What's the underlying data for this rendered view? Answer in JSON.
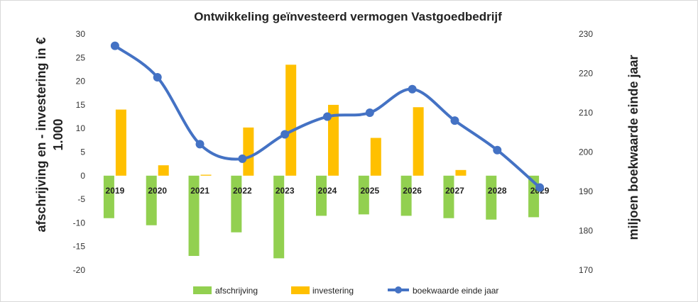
{
  "chart_data": {
    "type": "bar",
    "title": "Ontwikkeling  geïnvesteerd vermogen Vastgoedbedrijf",
    "ylabel_left_line1": "afschrijving en - investering in €",
    "ylabel_left_line2": "1.000",
    "ylabel_right": "miljoen boekwaarde einde jaar",
    "categories": [
      "2019",
      "2020",
      "2021",
      "2022",
      "2023",
      "2024",
      "2025",
      "2026",
      "2027",
      "2028",
      "2029"
    ],
    "ylim_left": [
      -20,
      30
    ],
    "yticks_left": [
      -20,
      -15,
      -10,
      -5,
      0,
      5,
      10,
      15,
      20,
      25,
      30
    ],
    "ylim_right": [
      170,
      230
    ],
    "yticks_right": [
      170,
      180,
      190,
      200,
      210,
      220,
      230
    ],
    "series": [
      {
        "name": "afschrijving",
        "kind": "bar",
        "axis": "left",
        "color": "#92D050",
        "values": [
          -9.0,
          -10.5,
          -17.0,
          -12.0,
          -17.5,
          -8.5,
          -8.2,
          -8.5,
          -9.0,
          -9.3,
          -8.8
        ]
      },
      {
        "name": "investering",
        "kind": "bar",
        "axis": "left",
        "color": "#FFC000",
        "values": [
          14.0,
          2.2,
          0.2,
          10.2,
          23.5,
          15.0,
          8.0,
          14.5,
          1.2,
          0.0,
          0.0
        ]
      },
      {
        "name": "boekwaarde einde jaar",
        "kind": "line",
        "axis": "right",
        "color": "#4472C4",
        "values": [
          227,
          219,
          202,
          198.3,
          204.5,
          209,
          210,
          216,
          208,
          200.5,
          191
        ]
      }
    ],
    "legend_position": "bottom",
    "grid": false
  }
}
